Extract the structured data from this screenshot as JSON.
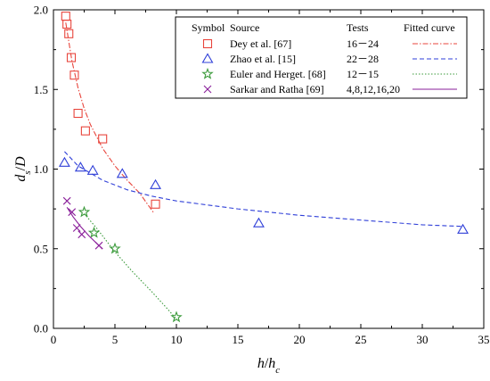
{
  "chart_data": {
    "type": "scatter",
    "xlabel": "h/h_c",
    "ylabel": "d_s/D",
    "xlim": [
      0,
      35
    ],
    "ylim": [
      0,
      2.0
    ],
    "x_ticks": [
      "0",
      "5",
      "10",
      "15",
      "20",
      "25",
      "30",
      "35"
    ],
    "y_ticks": [
      "0.0",
      "0.5",
      "1.0",
      "1.5",
      "2.0"
    ],
    "grid": false,
    "legend_placement": "top-right",
    "legend_headers": {
      "symbol": "Symbol",
      "source": "Source",
      "tests": "Tests",
      "fitted": "Fitted curve"
    },
    "series": [
      {
        "name": "Dey et al. [67]",
        "tests": "16－24",
        "marker": "square",
        "color": "#e8453c",
        "curve_style": "dash-dot",
        "points": [
          [
            1.0,
            1.96
          ],
          [
            1.1,
            1.91
          ],
          [
            1.25,
            1.85
          ],
          [
            1.45,
            1.7
          ],
          [
            1.7,
            1.59
          ],
          [
            2.0,
            1.35
          ],
          [
            2.6,
            1.24
          ],
          [
            4.0,
            1.19
          ],
          [
            8.3,
            0.78
          ]
        ],
        "curve": [
          [
            1.0,
            1.92
          ],
          [
            1.5,
            1.68
          ],
          [
            2.0,
            1.51
          ],
          [
            2.5,
            1.38
          ],
          [
            3.0,
            1.28
          ],
          [
            4.0,
            1.13
          ],
          [
            5.0,
            1.02
          ],
          [
            6.0,
            0.93
          ],
          [
            7.0,
            0.85
          ],
          [
            8.2,
            0.72
          ]
        ]
      },
      {
        "name": "Zhao et al. [15]",
        "tests": "22－28",
        "marker": "triangle",
        "color": "#2f3fd8",
        "curve_style": "dashed",
        "points": [
          [
            0.9,
            1.04
          ],
          [
            2.2,
            1.01
          ],
          [
            3.2,
            0.99
          ],
          [
            5.6,
            0.97
          ],
          [
            8.3,
            0.9
          ],
          [
            16.7,
            0.66
          ],
          [
            33.3,
            0.62
          ]
        ],
        "curve": [
          [
            0.9,
            1.11
          ],
          [
            2.0,
            1.02
          ],
          [
            4.0,
            0.93
          ],
          [
            6.0,
            0.87
          ],
          [
            8.0,
            0.83
          ],
          [
            10.0,
            0.8
          ],
          [
            15.0,
            0.75
          ],
          [
            20.0,
            0.71
          ],
          [
            25.0,
            0.68
          ],
          [
            30.0,
            0.65
          ],
          [
            33.3,
            0.64
          ]
        ]
      },
      {
        "name": "Euler and Herget. [68]",
        "tests": "12－15",
        "marker": "star",
        "color": "#3a9a3a",
        "curve_style": "dotted",
        "points": [
          [
            2.5,
            0.73
          ],
          [
            3.3,
            0.6
          ],
          [
            5.0,
            0.5
          ],
          [
            10.0,
            0.07
          ]
        ],
        "curve": [
          [
            2.5,
            0.72
          ],
          [
            3.5,
            0.63
          ],
          [
            5.0,
            0.48
          ],
          [
            6.5,
            0.35
          ],
          [
            8.0,
            0.23
          ],
          [
            9.3,
            0.12
          ],
          [
            10.1,
            0.05
          ]
        ]
      },
      {
        "name": "Sarkar and Ratha [69]",
        "tests": "4,8,12,16,20",
        "marker": "x",
        "color": "#8a1f9a",
        "curve_style": "solid",
        "points": [
          [
            1.1,
            0.8
          ],
          [
            1.5,
            0.73
          ],
          [
            1.9,
            0.63
          ],
          [
            2.3,
            0.59
          ],
          [
            3.7,
            0.52
          ]
        ],
        "curve": [
          [
            1.1,
            0.76
          ],
          [
            1.6,
            0.7
          ],
          [
            2.2,
            0.64
          ],
          [
            2.9,
            0.58
          ],
          [
            3.7,
            0.52
          ],
          [
            4.0,
            0.5
          ]
        ]
      }
    ]
  }
}
